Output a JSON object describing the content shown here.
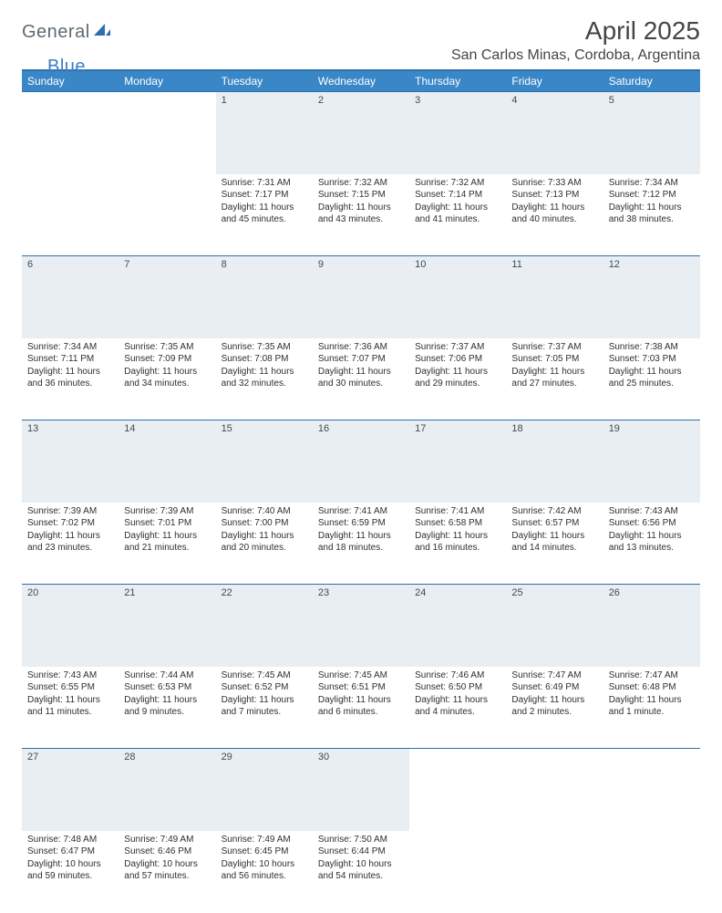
{
  "brand": {
    "part1": "General",
    "part2": "Blue"
  },
  "title": "April 2025",
  "location": "San Carlos Minas, Cordoba, Argentina",
  "colors": {
    "header_bg": "#3a87c7",
    "divider": "#2f6fab",
    "daynum_bg": "#e9eef3",
    "brand_gray": "#5f6a72",
    "brand_blue": "#3a7fc4"
  },
  "day_headers": [
    "Sunday",
    "Monday",
    "Tuesday",
    "Wednesday",
    "Thursday",
    "Friday",
    "Saturday"
  ],
  "weeks": [
    [
      null,
      null,
      {
        "n": "1",
        "sr": "Sunrise: 7:31 AM",
        "ss": "Sunset: 7:17 PM",
        "dl": "Daylight: 11 hours and 45 minutes."
      },
      {
        "n": "2",
        "sr": "Sunrise: 7:32 AM",
        "ss": "Sunset: 7:15 PM",
        "dl": "Daylight: 11 hours and 43 minutes."
      },
      {
        "n": "3",
        "sr": "Sunrise: 7:32 AM",
        "ss": "Sunset: 7:14 PM",
        "dl": "Daylight: 11 hours and 41 minutes."
      },
      {
        "n": "4",
        "sr": "Sunrise: 7:33 AM",
        "ss": "Sunset: 7:13 PM",
        "dl": "Daylight: 11 hours and 40 minutes."
      },
      {
        "n": "5",
        "sr": "Sunrise: 7:34 AM",
        "ss": "Sunset: 7:12 PM",
        "dl": "Daylight: 11 hours and 38 minutes."
      }
    ],
    [
      {
        "n": "6",
        "sr": "Sunrise: 7:34 AM",
        "ss": "Sunset: 7:11 PM",
        "dl": "Daylight: 11 hours and 36 minutes."
      },
      {
        "n": "7",
        "sr": "Sunrise: 7:35 AM",
        "ss": "Sunset: 7:09 PM",
        "dl": "Daylight: 11 hours and 34 minutes."
      },
      {
        "n": "8",
        "sr": "Sunrise: 7:35 AM",
        "ss": "Sunset: 7:08 PM",
        "dl": "Daylight: 11 hours and 32 minutes."
      },
      {
        "n": "9",
        "sr": "Sunrise: 7:36 AM",
        "ss": "Sunset: 7:07 PM",
        "dl": "Daylight: 11 hours and 30 minutes."
      },
      {
        "n": "10",
        "sr": "Sunrise: 7:37 AM",
        "ss": "Sunset: 7:06 PM",
        "dl": "Daylight: 11 hours and 29 minutes."
      },
      {
        "n": "11",
        "sr": "Sunrise: 7:37 AM",
        "ss": "Sunset: 7:05 PM",
        "dl": "Daylight: 11 hours and 27 minutes."
      },
      {
        "n": "12",
        "sr": "Sunrise: 7:38 AM",
        "ss": "Sunset: 7:03 PM",
        "dl": "Daylight: 11 hours and 25 minutes."
      }
    ],
    [
      {
        "n": "13",
        "sr": "Sunrise: 7:39 AM",
        "ss": "Sunset: 7:02 PM",
        "dl": "Daylight: 11 hours and 23 minutes."
      },
      {
        "n": "14",
        "sr": "Sunrise: 7:39 AM",
        "ss": "Sunset: 7:01 PM",
        "dl": "Daylight: 11 hours and 21 minutes."
      },
      {
        "n": "15",
        "sr": "Sunrise: 7:40 AM",
        "ss": "Sunset: 7:00 PM",
        "dl": "Daylight: 11 hours and 20 minutes."
      },
      {
        "n": "16",
        "sr": "Sunrise: 7:41 AM",
        "ss": "Sunset: 6:59 PM",
        "dl": "Daylight: 11 hours and 18 minutes."
      },
      {
        "n": "17",
        "sr": "Sunrise: 7:41 AM",
        "ss": "Sunset: 6:58 PM",
        "dl": "Daylight: 11 hours and 16 minutes."
      },
      {
        "n": "18",
        "sr": "Sunrise: 7:42 AM",
        "ss": "Sunset: 6:57 PM",
        "dl": "Daylight: 11 hours and 14 minutes."
      },
      {
        "n": "19",
        "sr": "Sunrise: 7:43 AM",
        "ss": "Sunset: 6:56 PM",
        "dl": "Daylight: 11 hours and 13 minutes."
      }
    ],
    [
      {
        "n": "20",
        "sr": "Sunrise: 7:43 AM",
        "ss": "Sunset: 6:55 PM",
        "dl": "Daylight: 11 hours and 11 minutes."
      },
      {
        "n": "21",
        "sr": "Sunrise: 7:44 AM",
        "ss": "Sunset: 6:53 PM",
        "dl": "Daylight: 11 hours and 9 minutes."
      },
      {
        "n": "22",
        "sr": "Sunrise: 7:45 AM",
        "ss": "Sunset: 6:52 PM",
        "dl": "Daylight: 11 hours and 7 minutes."
      },
      {
        "n": "23",
        "sr": "Sunrise: 7:45 AM",
        "ss": "Sunset: 6:51 PM",
        "dl": "Daylight: 11 hours and 6 minutes."
      },
      {
        "n": "24",
        "sr": "Sunrise: 7:46 AM",
        "ss": "Sunset: 6:50 PM",
        "dl": "Daylight: 11 hours and 4 minutes."
      },
      {
        "n": "25",
        "sr": "Sunrise: 7:47 AM",
        "ss": "Sunset: 6:49 PM",
        "dl": "Daylight: 11 hours and 2 minutes."
      },
      {
        "n": "26",
        "sr": "Sunrise: 7:47 AM",
        "ss": "Sunset: 6:48 PM",
        "dl": "Daylight: 11 hours and 1 minute."
      }
    ],
    [
      {
        "n": "27",
        "sr": "Sunrise: 7:48 AM",
        "ss": "Sunset: 6:47 PM",
        "dl": "Daylight: 10 hours and 59 minutes."
      },
      {
        "n": "28",
        "sr": "Sunrise: 7:49 AM",
        "ss": "Sunset: 6:46 PM",
        "dl": "Daylight: 10 hours and 57 minutes."
      },
      {
        "n": "29",
        "sr": "Sunrise: 7:49 AM",
        "ss": "Sunset: 6:45 PM",
        "dl": "Daylight: 10 hours and 56 minutes."
      },
      {
        "n": "30",
        "sr": "Sunrise: 7:50 AM",
        "ss": "Sunset: 6:44 PM",
        "dl": "Daylight: 10 hours and 54 minutes."
      },
      null,
      null,
      null
    ]
  ]
}
